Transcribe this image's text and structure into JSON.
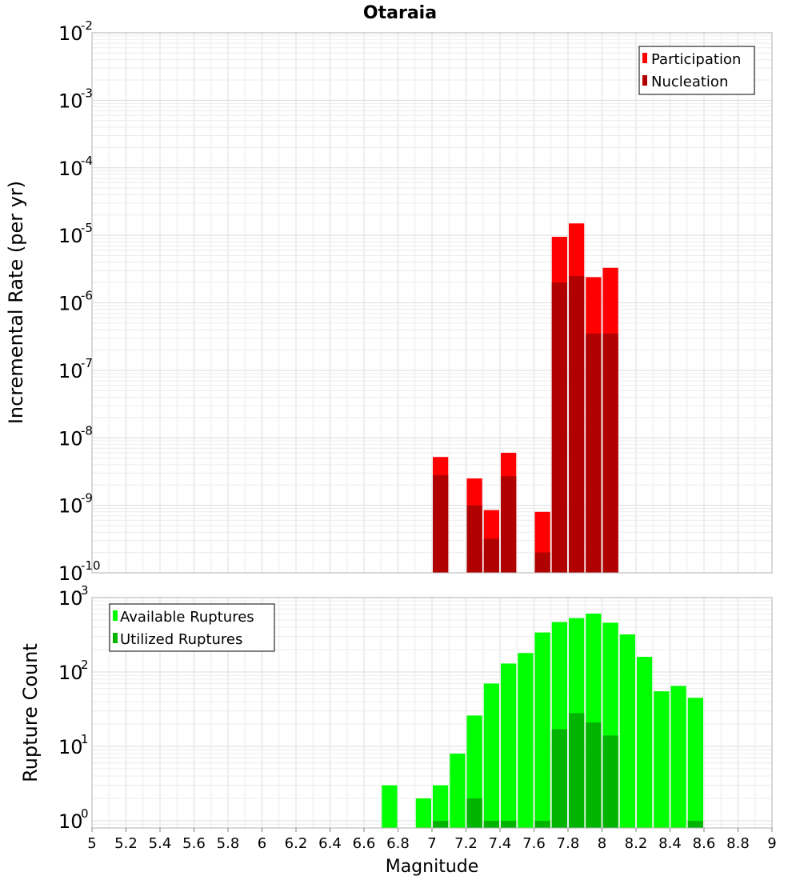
{
  "chart_data": [
    {
      "type": "bar",
      "title": "Otaraia",
      "xlabel": "",
      "ylabel": "Incremental Rate (per yr)",
      "yscale": "log",
      "xlim": [
        5,
        9
      ],
      "ylim": [
        1e-10,
        0.01
      ],
      "grid": true,
      "legend_position": "top-right",
      "bar_width": 0.1,
      "y_ticks": [
        {
          "base": "10",
          "exp": "-10"
        },
        {
          "base": "10",
          "exp": "-9"
        },
        {
          "base": "10",
          "exp": "-8"
        },
        {
          "base": "10",
          "exp": "-7"
        },
        {
          "base": "10",
          "exp": "-6"
        },
        {
          "base": "10",
          "exp": "-5"
        },
        {
          "base": "10",
          "exp": "-4"
        },
        {
          "base": "10",
          "exp": "-3"
        },
        {
          "base": "10",
          "exp": "-2"
        }
      ],
      "series": [
        {
          "name": "Participation",
          "color": "#ff0000",
          "x": [
            7.05,
            7.25,
            7.35,
            7.45,
            7.65,
            7.75,
            7.85,
            7.95,
            8.05
          ],
          "values": [
            5.2e-09,
            2.5e-09,
            8.5e-10,
            6e-09,
            8e-10,
            9.5e-06,
            1.5e-05,
            2.4e-06,
            3.3e-06
          ]
        },
        {
          "name": "Nucleation",
          "color": "#b00000",
          "x": [
            7.05,
            7.25,
            7.35,
            7.45,
            7.65,
            7.75,
            7.85,
            7.95,
            8.05
          ],
          "values": [
            2.8e-09,
            1e-09,
            3.2e-10,
            2.7e-09,
            2e-10,
            2e-06,
            2.5e-06,
            3.5e-07,
            3.5e-07
          ]
        }
      ]
    },
    {
      "type": "bar",
      "title": "",
      "xlabel": "Magnitude",
      "ylabel": "Rupture Count",
      "yscale": "log",
      "xlim": [
        5,
        9
      ],
      "ylim": [
        0.8,
        1000
      ],
      "grid": true,
      "legend_position": "top-left",
      "bar_width": 0.1,
      "x_ticks": [
        "5",
        "5.2",
        "5.4",
        "5.6",
        "5.8",
        "6",
        "6.2",
        "6.4",
        "6.6",
        "6.8",
        "7",
        "7.2",
        "7.4",
        "7.6",
        "7.8",
        "8",
        "8.2",
        "8.4",
        "8.6",
        "8.8",
        "9"
      ],
      "y_ticks": [
        {
          "base": "10",
          "exp": "0"
        },
        {
          "base": "10",
          "exp": "1"
        },
        {
          "base": "10",
          "exp": "2"
        },
        {
          "base": "10",
          "exp": "3"
        }
      ],
      "series": [
        {
          "name": "Available Ruptures",
          "color": "#00ff00",
          "x": [
            6.75,
            6.95,
            7.05,
            7.15,
            7.25,
            7.35,
            7.45,
            7.55,
            7.65,
            7.75,
            7.85,
            7.95,
            8.05,
            8.15,
            8.25,
            8.35,
            8.45,
            8.55
          ],
          "values": [
            3,
            2,
            3,
            8,
            26,
            70,
            130,
            180,
            340,
            470,
            530,
            610,
            460,
            320,
            160,
            55,
            65,
            45
          ]
        },
        {
          "name": "Utilized Ruptures",
          "color": "#00b400",
          "x": [
            7.05,
            7.25,
            7.35,
            7.45,
            7.65,
            7.75,
            7.85,
            7.95,
            8.05,
            8.55
          ],
          "values": [
            1,
            2,
            1,
            1,
            1,
            17,
            28,
            21,
            14,
            1
          ]
        }
      ]
    }
  ]
}
